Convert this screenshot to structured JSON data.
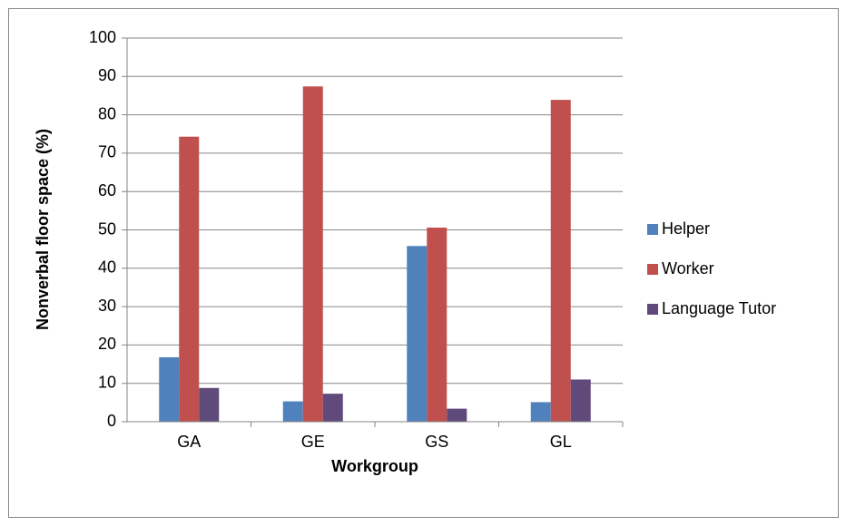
{
  "chart_data": {
    "type": "bar",
    "x_label": "Workgroup",
    "y_label": "Nonverbal floor space (%)",
    "categories": [
      "GA",
      "GE",
      "GS",
      "GL"
    ],
    "series": [
      {
        "name": "Helper",
        "color": "#4f81bd",
        "values": [
          16.8,
          5.3,
          45.8,
          5.1
        ]
      },
      {
        "name": "Worker",
        "color": "#c0504d",
        "values": [
          74.3,
          87.4,
          50.6,
          83.9
        ]
      },
      {
        "name": "Language Tutor",
        "color": "#604a7b",
        "values": [
          8.8,
          7.3,
          3.4,
          11.0
        ]
      }
    ],
    "ylim": [
      0,
      100
    ],
    "yticks": [
      0,
      10,
      20,
      30,
      40,
      50,
      60,
      70,
      80,
      90,
      100
    ],
    "grid": true,
    "legend": "right"
  }
}
